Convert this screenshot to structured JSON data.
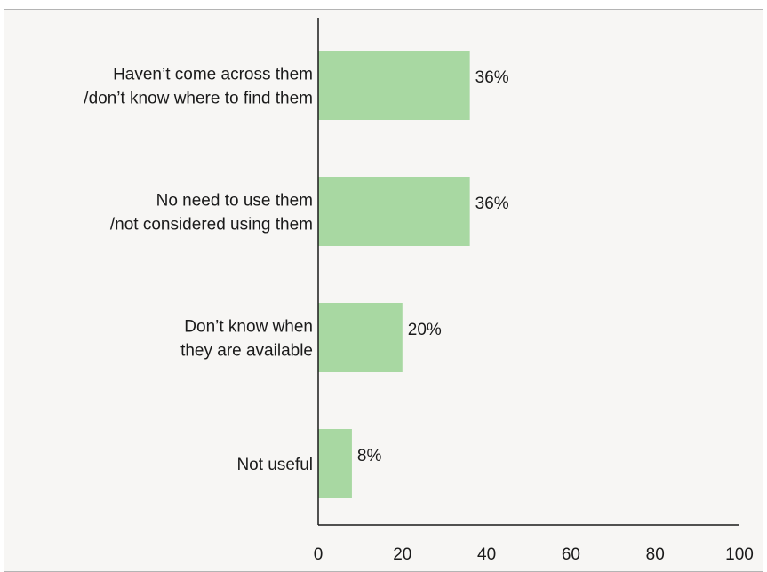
{
  "chart_data": {
    "type": "bar",
    "orientation": "horizontal",
    "categories": [
      [
        "Haven’t come across them",
        "/don’t know where to find them"
      ],
      [
        "No need to use them",
        "/not considered using them"
      ],
      [
        "Don’t know when",
        "they are available"
      ],
      [
        "Not useful"
      ]
    ],
    "values": [
      36,
      36,
      20,
      8
    ],
    "data_labels": [
      "36%",
      "36%",
      "20%",
      "8%"
    ],
    "xlim": [
      0,
      100
    ],
    "xticks": [
      "0",
      "20",
      "40",
      "60",
      "80",
      "100"
    ],
    "title": "",
    "xlabel": "",
    "ylabel": "",
    "grid": false,
    "legend": "none",
    "bar_color": "#a8d8a2",
    "axis_color": "#1a1a1a",
    "background": "#f7f6f4"
  }
}
